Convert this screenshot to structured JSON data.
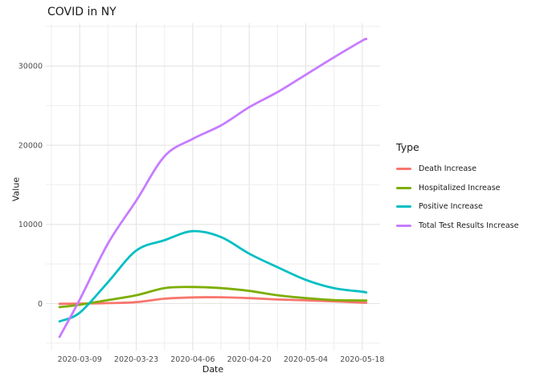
{
  "chart_data": {
    "type": "line",
    "title": "COVID in NY",
    "xlabel": "Date",
    "ylabel": "Value",
    "legend_title": "Type",
    "legend_position": "right",
    "grid": true,
    "background": "#ffffff",
    "major_grid_color": "#e4e4e4",
    "minor_grid_color": "#eeeeee",
    "tick_label_color": "#4d4d4d",
    "x_range": [
      "2020-03-04",
      "2020-05-19"
    ],
    "ylim": [
      -5900,
      35400
    ],
    "x_ticks": [
      "2020-03-09",
      "2020-03-23",
      "2020-04-06",
      "2020-04-20",
      "2020-05-04",
      "2020-05-18"
    ],
    "x_minor_ticks": [
      "2020-03-02",
      "2020-03-16",
      "2020-03-30",
      "2020-04-13",
      "2020-04-27",
      "2020-05-11"
    ],
    "y_ticks": [
      {
        "value": 0,
        "label": "0"
      },
      {
        "value": 10000,
        "label": "10000"
      },
      {
        "value": 20000,
        "label": "20000"
      },
      {
        "value": 30000,
        "label": "30000"
      }
    ],
    "y_minor_ticks": [
      -5000,
      5000,
      15000,
      25000,
      35000
    ],
    "x": [
      "2020-03-04",
      "2020-03-09",
      "2020-03-16",
      "2020-03-23",
      "2020-03-30",
      "2020-04-06",
      "2020-04-13",
      "2020-04-20",
      "2020-04-27",
      "2020-05-04",
      "2020-05-11",
      "2020-05-18",
      "2020-05-19"
    ],
    "series": [
      {
        "name": "Death Increase",
        "color": "#F8766D",
        "values": [
          -30,
          0,
          60,
          180,
          620,
          780,
          800,
          690,
          520,
          420,
          280,
          120,
          100
        ]
      },
      {
        "name": "Hospitalized Increase",
        "color": "#7CAE00",
        "values": [
          -450,
          -150,
          450,
          1050,
          1950,
          2100,
          1950,
          1600,
          1050,
          700,
          450,
          400,
          390
        ]
      },
      {
        "name": "Positive Increase",
        "color": "#00BFC4",
        "values": [
          -2250,
          -1150,
          2700,
          6700,
          8000,
          9150,
          8400,
          6300,
          4600,
          3000,
          1950,
          1500,
          1400
        ]
      },
      {
        "name": "Total Test Results Increase",
        "color": "#C77CFF",
        "values": [
          -4200,
          500,
          7600,
          13000,
          18600,
          20800,
          22500,
          24800,
          26700,
          28900,
          31100,
          33200,
          33400
        ]
      }
    ]
  }
}
